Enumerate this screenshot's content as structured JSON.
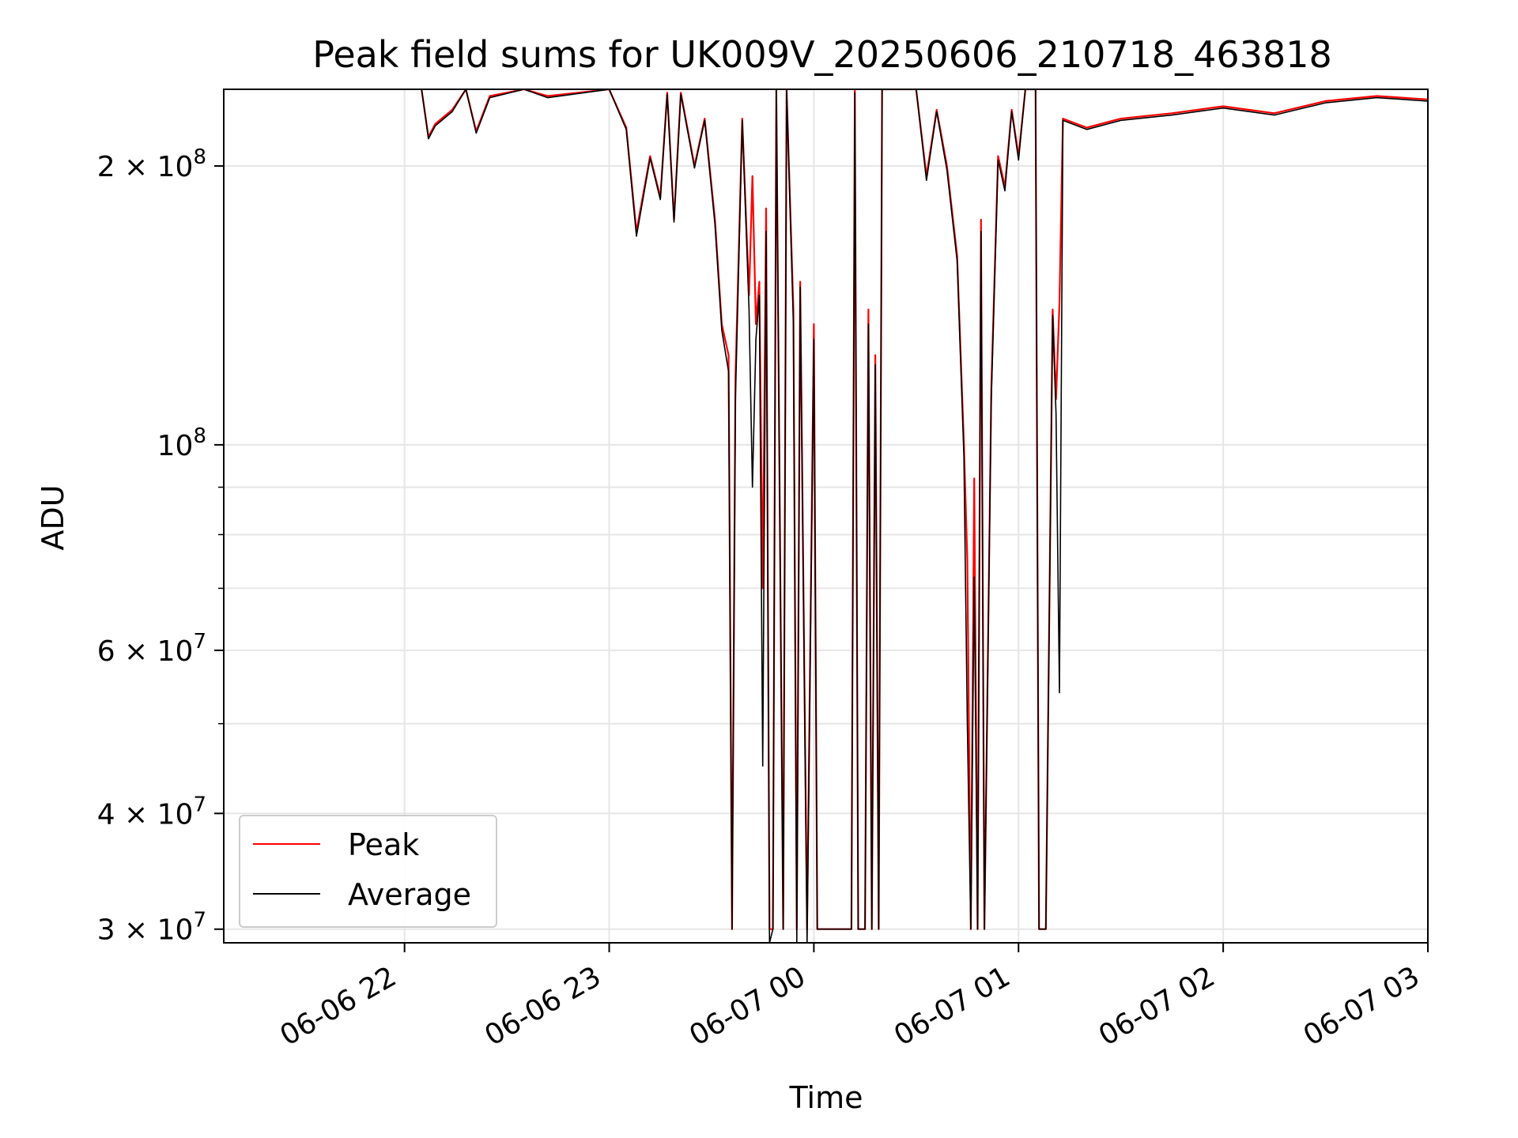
{
  "chart_data": {
    "type": "line",
    "title": "Peak field sums for UK009V_20250606_210718_463818",
    "xlabel": "Time",
    "ylabel": "ADU",
    "yscale": "log",
    "grid": true,
    "legend_position": "lower-left",
    "xlim": [
      "2025-06-06 21:07",
      "2025-06-07 03:00"
    ],
    "ylim": [
      29000000,
      242000000
    ],
    "x_ticks": [
      {
        "value": "2025-06-06 22:00",
        "label": "06-06 22"
      },
      {
        "value": "2025-06-06 23:00",
        "label": "06-06 23"
      },
      {
        "value": "2025-06-07 00:00",
        "label": "06-07 00"
      },
      {
        "value": "2025-06-07 01:00",
        "label": "06-07 01"
      },
      {
        "value": "2025-06-07 02:00",
        "label": "06-07 02"
      },
      {
        "value": "2025-06-07 03:00",
        "label": "06-07 03"
      }
    ],
    "y_ticks_major": [
      {
        "value": 100000000,
        "label_base": "10",
        "label_exp": "8",
        "label_mult": ""
      },
      {
        "value": 200000000,
        "label_base": "10",
        "label_exp": "8",
        "label_mult": "2 × "
      },
      {
        "value": 30000000,
        "label_base": "10",
        "label_exp": "7",
        "label_mult": "3 × "
      },
      {
        "value": 40000000,
        "label_base": "10",
        "label_exp": "7",
        "label_mult": "4 × "
      },
      {
        "value": 60000000,
        "label_base": "10",
        "label_exp": "7",
        "label_mult": "6 × "
      }
    ],
    "y_ticks_minor": [
      50000000,
      70000000,
      80000000,
      90000000
    ],
    "series": [
      {
        "name": "Peak",
        "color": "#ff0000",
        "points": [
          [
            "2025-06-06 22:05",
            242000000
          ],
          [
            "2025-06-06 22:07",
            215000000
          ],
          [
            "2025-06-06 22:09",
            222000000
          ],
          [
            "2025-06-06 22:14",
            230000000
          ],
          [
            "2025-06-06 22:18",
            242000000
          ],
          [
            "2025-06-06 22:21",
            218000000
          ],
          [
            "2025-06-06 22:25",
            238000000
          ],
          [
            "2025-06-06 22:35",
            242000000
          ],
          [
            "2025-06-06 22:42",
            238000000
          ],
          [
            "2025-06-06 23:00",
            242000000
          ],
          [
            "2025-06-06 23:05",
            220000000
          ],
          [
            "2025-06-06 23:08",
            170000000
          ],
          [
            "2025-06-06 23:12",
            205000000
          ],
          [
            "2025-06-06 23:15",
            185000000
          ],
          [
            "2025-06-06 23:17",
            240000000
          ],
          [
            "2025-06-06 23:19",
            175000000
          ],
          [
            "2025-06-06 23:21",
            240000000
          ],
          [
            "2025-06-06 23:25",
            200000000
          ],
          [
            "2025-06-06 23:28",
            225000000
          ],
          [
            "2025-06-06 23:31",
            175000000
          ],
          [
            "2025-06-06 23:33",
            135000000
          ],
          [
            "2025-06-06 23:35",
            125000000
          ],
          [
            "2025-06-06 23:36",
            30000000
          ],
          [
            "2025-06-06 23:37",
            118000000
          ],
          [
            "2025-06-06 23:39",
            225000000
          ],
          [
            "2025-06-06 23:41",
            145000000
          ],
          [
            "2025-06-06 23:42",
            195000000
          ],
          [
            "2025-06-06 23:43",
            135000000
          ],
          [
            "2025-06-06 23:44",
            150000000
          ],
          [
            "2025-06-06 23:45",
            70000000
          ],
          [
            "2025-06-06 23:46",
            180000000
          ],
          [
            "2025-06-06 23:47",
            30000000
          ],
          [
            "2025-06-06 23:48",
            30000000
          ],
          [
            "2025-06-06 23:49",
            242000000
          ],
          [
            "2025-06-06 23:51",
            30000000
          ],
          [
            "2025-06-06 23:52",
            242000000
          ],
          [
            "2025-06-06 23:54",
            140000000
          ],
          [
            "2025-06-06 23:55",
            30000000
          ],
          [
            "2025-06-06 23:56",
            150000000
          ],
          [
            "2025-06-06 23:58",
            30000000
          ],
          [
            "2025-06-07 00:00",
            135000000
          ],
          [
            "2025-06-07 00:01",
            30000000
          ],
          [
            "2025-06-07 00:11",
            30000000
          ],
          [
            "2025-06-07 00:12",
            242000000
          ],
          [
            "2025-06-07 00:13",
            30000000
          ],
          [
            "2025-06-07 00:15",
            30000000
          ],
          [
            "2025-06-07 00:16",
            140000000
          ],
          [
            "2025-06-07 00:17",
            30000000
          ],
          [
            "2025-06-07 00:18",
            125000000
          ],
          [
            "2025-06-07 00:19",
            30000000
          ],
          [
            "2025-06-07 00:20",
            242000000
          ],
          [
            "2025-06-07 00:30",
            242000000
          ],
          [
            "2025-06-07 00:33",
            195000000
          ],
          [
            "2025-06-07 00:36",
            230000000
          ],
          [
            "2025-06-07 00:39",
            200000000
          ],
          [
            "2025-06-07 00:42",
            160000000
          ],
          [
            "2025-06-07 00:44",
            100000000
          ],
          [
            "2025-06-07 00:45",
            75000000
          ],
          [
            "2025-06-07 00:46",
            30000000
          ],
          [
            "2025-06-07 00:47",
            92000000
          ],
          [
            "2025-06-07 00:48",
            30000000
          ],
          [
            "2025-06-07 00:49",
            175000000
          ],
          [
            "2025-06-07 00:50",
            30000000
          ],
          [
            "2025-06-07 00:52",
            115000000
          ],
          [
            "2025-06-07 00:54",
            205000000
          ],
          [
            "2025-06-07 00:56",
            190000000
          ],
          [
            "2025-06-07 00:58",
            230000000
          ],
          [
            "2025-06-07 01:00",
            205000000
          ],
          [
            "2025-06-07 01:02",
            242000000
          ],
          [
            "2025-06-07 01:05",
            242000000
          ],
          [
            "2025-06-07 01:06",
            30000000
          ],
          [
            "2025-06-07 01:08",
            30000000
          ],
          [
            "2025-06-07 01:10",
            140000000
          ],
          [
            "2025-06-07 01:11",
            112000000
          ],
          [
            "2025-06-07 01:12",
            142000000
          ],
          [
            "2025-06-07 01:13",
            225000000
          ],
          [
            "2025-06-07 01:20",
            220000000
          ],
          [
            "2025-06-07 01:30",
            225000000
          ],
          [
            "2025-06-07 01:45",
            228000000
          ],
          [
            "2025-06-07 02:00",
            232000000
          ],
          [
            "2025-06-07 02:15",
            228000000
          ],
          [
            "2025-06-07 02:30",
            235000000
          ],
          [
            "2025-06-07 02:45",
            238000000
          ],
          [
            "2025-06-07 03:00",
            236000000
          ]
        ]
      },
      {
        "name": "Average",
        "color": "#000000",
        "points": [
          [
            "2025-06-06 22:05",
            242000000
          ],
          [
            "2025-06-06 22:07",
            214000000
          ],
          [
            "2025-06-06 22:09",
            221000000
          ],
          [
            "2025-06-06 22:14",
            229000000
          ],
          [
            "2025-06-06 22:18",
            242000000
          ],
          [
            "2025-06-06 22:21",
            217000000
          ],
          [
            "2025-06-06 22:25",
            237000000
          ],
          [
            "2025-06-06 22:35",
            242000000
          ],
          [
            "2025-06-06 22:42",
            237000000
          ],
          [
            "2025-06-06 23:00",
            242000000
          ],
          [
            "2025-06-06 23:05",
            219000000
          ],
          [
            "2025-06-06 23:08",
            168000000
          ],
          [
            "2025-06-06 23:12",
            204000000
          ],
          [
            "2025-06-06 23:15",
            184000000
          ],
          [
            "2025-06-06 23:17",
            239000000
          ],
          [
            "2025-06-06 23:19",
            174000000
          ],
          [
            "2025-06-06 23:21",
            239000000
          ],
          [
            "2025-06-06 23:25",
            199000000
          ],
          [
            "2025-06-06 23:28",
            224000000
          ],
          [
            "2025-06-06 23:31",
            173000000
          ],
          [
            "2025-06-06 23:33",
            133000000
          ],
          [
            "2025-06-06 23:35",
            120000000
          ],
          [
            "2025-06-06 23:36",
            30000000
          ],
          [
            "2025-06-06 23:37",
            112000000
          ],
          [
            "2025-06-06 23:39",
            224000000
          ],
          [
            "2025-06-06 23:41",
            140000000
          ],
          [
            "2025-06-06 23:42",
            90000000
          ],
          [
            "2025-06-06 23:43",
            130000000
          ],
          [
            "2025-06-06 23:44",
            145000000
          ],
          [
            "2025-06-06 23:45",
            45000000
          ],
          [
            "2025-06-06 23:46",
            170000000
          ],
          [
            "2025-06-06 23:47",
            29000000
          ],
          [
            "2025-06-06 23:48",
            30000000
          ],
          [
            "2025-06-06 23:49",
            242000000
          ],
          [
            "2025-06-06 23:51",
            30000000
          ],
          [
            "2025-06-06 23:52",
            242000000
          ],
          [
            "2025-06-06 23:54",
            135000000
          ],
          [
            "2025-06-06 23:55",
            29000000
          ],
          [
            "2025-06-06 23:56",
            148000000
          ],
          [
            "2025-06-06 23:58",
            29000000
          ],
          [
            "2025-06-07 00:00",
            130000000
          ],
          [
            "2025-06-07 00:01",
            30000000
          ],
          [
            "2025-06-07 00:11",
            30000000
          ],
          [
            "2025-06-07 00:12",
            240000000
          ],
          [
            "2025-06-07 00:13",
            30000000
          ],
          [
            "2025-06-07 00:15",
            30000000
          ],
          [
            "2025-06-07 00:16",
            135000000
          ],
          [
            "2025-06-07 00:17",
            30000000
          ],
          [
            "2025-06-07 00:18",
            122000000
          ],
          [
            "2025-06-07 00:19",
            30000000
          ],
          [
            "2025-06-07 00:20",
            242000000
          ],
          [
            "2025-06-07 00:30",
            242000000
          ],
          [
            "2025-06-07 00:33",
            193000000
          ],
          [
            "2025-06-07 00:36",
            229000000
          ],
          [
            "2025-06-07 00:39",
            198000000
          ],
          [
            "2025-06-07 00:42",
            158000000
          ],
          [
            "2025-06-07 00:44",
            97000000
          ],
          [
            "2025-06-07 00:45",
            50000000
          ],
          [
            "2025-06-07 00:46",
            30000000
          ],
          [
            "2025-06-07 00:47",
            72000000
          ],
          [
            "2025-06-07 00:48",
            30000000
          ],
          [
            "2025-06-07 00:49",
            170000000
          ],
          [
            "2025-06-07 00:50",
            30000000
          ],
          [
            "2025-06-07 00:52",
            112000000
          ],
          [
            "2025-06-07 00:54",
            203000000
          ],
          [
            "2025-06-07 00:56",
            188000000
          ],
          [
            "2025-06-07 00:58",
            229000000
          ],
          [
            "2025-06-07 01:00",
            203000000
          ],
          [
            "2025-06-07 01:02",
            242000000
          ],
          [
            "2025-06-07 01:05",
            242000000
          ],
          [
            "2025-06-07 01:06",
            30000000
          ],
          [
            "2025-06-07 01:08",
            30000000
          ],
          [
            "2025-06-07 01:10",
            138000000
          ],
          [
            "2025-06-07 01:11",
            108000000
          ],
          [
            "2025-06-07 01:12",
            54000000
          ],
          [
            "2025-06-07 01:13",
            224000000
          ],
          [
            "2025-06-07 01:20",
            219000000
          ],
          [
            "2025-06-07 01:30",
            224000000
          ],
          [
            "2025-06-07 01:45",
            227000000
          ],
          [
            "2025-06-07 02:00",
            231000000
          ],
          [
            "2025-06-07 02:15",
            227000000
          ],
          [
            "2025-06-07 02:30",
            234000000
          ],
          [
            "2025-06-07 02:45",
            237000000
          ],
          [
            "2025-06-07 03:00",
            235000000
          ]
        ]
      }
    ]
  }
}
